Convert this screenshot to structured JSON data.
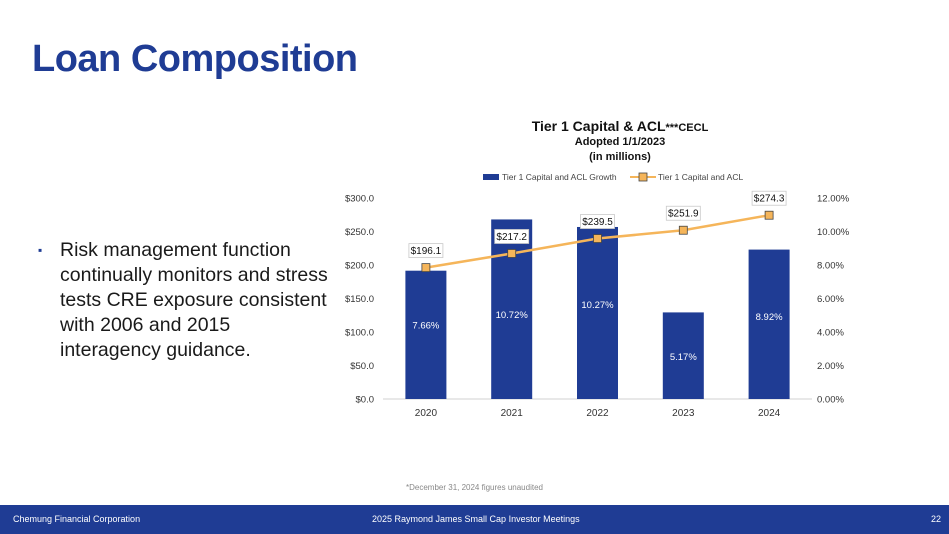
{
  "slide": {
    "title": "Loan Composition",
    "bullets": [
      "Risk management function continually monitors and stress tests CRE exposure consistent with 2006 and 2015 interagency guidance."
    ],
    "bullet_marker": "▪",
    "footnote": "*December 31, 2024 figures unaudited"
  },
  "footer": {
    "company": "Chemung Financial Corporation",
    "event": "2025 Raymond James Small Cap Investor Meetings",
    "page_number": "22"
  },
  "colors": {
    "title": "#1F3C94",
    "bar": "#1F3C94",
    "line": "#F5B55A",
    "footer_bg": "#1F3C94"
  },
  "chart_data": {
    "type": "bar",
    "title": "Tier 1 Capital & ACL",
    "title_suffix": "***CECL",
    "subtitle": "Adopted 1/1/2023",
    "subtitle2": "(in millions)",
    "categories": [
      "2020",
      "2021",
      "2022",
      "2023",
      "2024"
    ],
    "series": [
      {
        "name": "Tier 1 Capital and ACL Growth",
        "type": "bar",
        "axis": "right",
        "values": [
          7.66,
          10.72,
          10.27,
          5.17,
          8.92
        ],
        "labels": [
          "7.66%",
          "10.72%",
          "10.27%",
          "5.17%",
          "8.92%"
        ]
      },
      {
        "name": "Tier 1 Capital and ACL",
        "type": "line",
        "axis": "left",
        "values": [
          196.1,
          217.2,
          239.5,
          251.9,
          274.3
        ],
        "labels": [
          "$196.1",
          "$217.2",
          "$239.5",
          "$251.9",
          "$274.3"
        ]
      }
    ],
    "y_left": {
      "min": 0,
      "max": 300,
      "ticks": [
        "$0.0",
        "$50.0",
        "$100.0",
        "$150.0",
        "$200.0",
        "$250.0",
        "$300.0"
      ]
    },
    "y_right": {
      "min": 0,
      "max": 12,
      "ticks": [
        "0.00%",
        "2.00%",
        "4.00%",
        "6.00%",
        "8.00%",
        "10.00%",
        "12.00%"
      ]
    },
    "legend": "top-center",
    "grid": false
  }
}
